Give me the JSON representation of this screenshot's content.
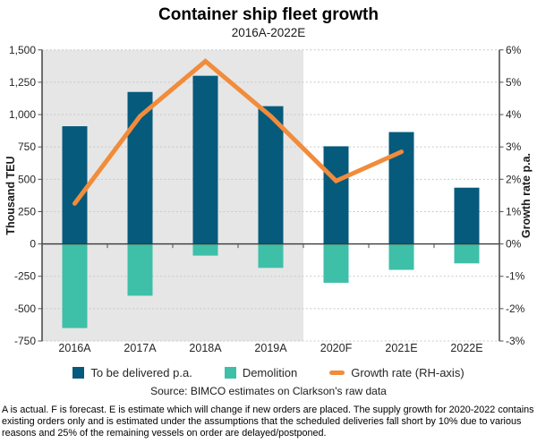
{
  "title": "Container ship fleet growth",
  "subtitle": "2016A-2022E",
  "source": "Source: BIMCO estimates on Clarkson's raw data",
  "footnote": "A is actual. F is forecast. E is estimate which will change if new orders are placed. The supply growth for 2020-2022 contains existing orders only and is estimated under the assumptions that the scheduled deliveries fall short by 10% due to various reasons and 25% of the remaining vessels on order are delayed/postponed.",
  "legend": [
    {
      "label": "To be delivered p.a.",
      "marker": "square",
      "color": "#065A7C"
    },
    {
      "label": "Demolition",
      "marker": "square",
      "color": "#3EBFA8"
    },
    {
      "label": "Growth rate (RH-axis)",
      "marker": "line",
      "color": "#F18C3B"
    }
  ],
  "chart_data": {
    "type": "bar+line combo",
    "categories": [
      "2016A",
      "2017A",
      "2018A",
      "2019A",
      "2020F",
      "2021E",
      "2022E"
    ],
    "series": [
      {
        "name": "To be delivered p.a.",
        "type": "bar",
        "axis": "left",
        "color": "#065A7C",
        "values": [
          910,
          1175,
          1300,
          1065,
          755,
          865,
          435
        ]
      },
      {
        "name": "Demolition",
        "type": "bar",
        "axis": "left",
        "color": "#3EBFA8",
        "values": [
          -650,
          -400,
          -90,
          -185,
          -300,
          -200,
          -150
        ]
      },
      {
        "name": "Growth rate (RH-axis)",
        "type": "line",
        "axis": "right",
        "color": "#F18C3B",
        "values": [
          1.25,
          3.95,
          5.65,
          3.95,
          1.95,
          2.85,
          null
        ]
      }
    ],
    "left_axis": {
      "label": "Thousand TEU",
      "min": -750,
      "max": 1500,
      "step": 250,
      "tick_labels": [
        "1,500",
        "1,250",
        "1,000",
        "750",
        "500",
        "250",
        "0",
        "-250",
        "-500",
        "-750"
      ]
    },
    "right_axis": {
      "label": "Growth rate p.a.",
      "min": -3,
      "max": 6,
      "step": 1,
      "tick_labels": [
        "6%",
        "5%",
        "4%",
        "3%",
        "2%",
        "1%",
        "0%",
        "-1%",
        "-2%",
        "-3%"
      ]
    },
    "shaded_actual_region": {
      "last_category": "2019A",
      "color": "#E6E6E6"
    },
    "grid": "dashed horizontal, solid zero line",
    "legend_position": "bottom"
  },
  "theme": {
    "plot_shaded_bg": "#E6E6E6",
    "plot_forecast_bg": "#FFFFFF",
    "gridline_color": "#C8C8C8",
    "zero_line_color": "#3A3A3A",
    "axis_color": "#4D4D4D",
    "tick_text_color": "#262626",
    "axis_title_color": "#1A1A1A"
  }
}
